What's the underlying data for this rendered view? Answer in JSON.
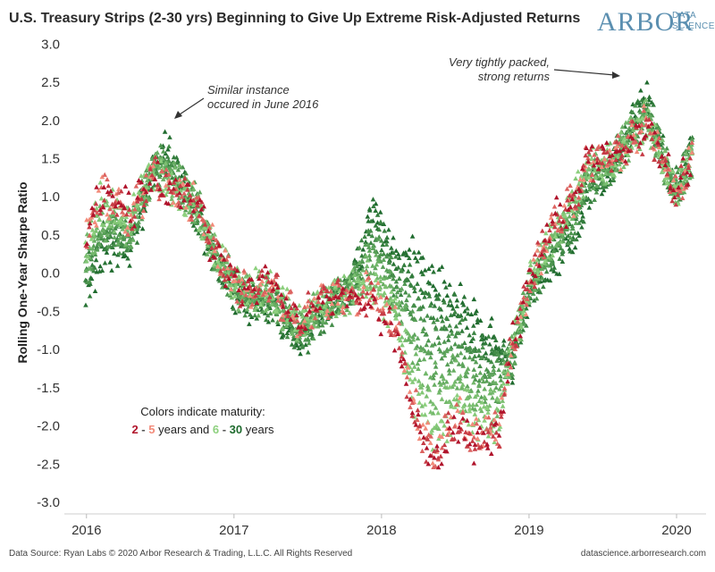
{
  "title": "U.S. Treasury Strips (2-30 yrs) Beginning to Give Up Extreme Risk-Adjusted Returns",
  "logo": {
    "main": "ARBOR",
    "sub_line1": "DATA",
    "sub_line2": "SCIENCE"
  },
  "footer": {
    "left": "Data Source: Ryan Labs © 2020 Arbor Research & Trading, L.L.C. All Rights Reserved",
    "right": "datascience.arborresearch.com"
  },
  "legend": {
    "line1": "Colors indicate maturity:",
    "n2": "2",
    "dash1": "-",
    "n5": "5",
    "mid": "years and",
    "n6": "6",
    "dash2": "-",
    "n30": "30",
    "end": "years"
  },
  "annotations": [
    {
      "line1": "Similar instance",
      "line2": "occured in June 2016"
    },
    {
      "line1": "Very tightly packed,",
      "line2": "strong returns"
    }
  ],
  "colors": {
    "short_dark": "#b0132b",
    "short_light": "#f28b7a",
    "long_light": "#8dd07e",
    "long_dark": "#1f6b2e"
  },
  "chart_data": {
    "type": "scatter",
    "xlabel": "",
    "ylabel": "Rolling One-Year Sharpe Ratio",
    "x_ticks": [
      "2016",
      "2017",
      "2018",
      "2019",
      "2020"
    ],
    "xlim": [
      2015.85,
      2020.2
    ],
    "ylim": [
      -3.15,
      3.05
    ],
    "y_ticks": [
      3.0,
      2.5,
      2.0,
      1.5,
      1.0,
      0.5,
      0.0,
      -0.5,
      -1.0,
      -1.5,
      -2.0,
      -2.5,
      -3.0
    ],
    "y_tick_labels": [
      "3.0",
      "2.5",
      "2.0",
      "1.5",
      "1.0",
      "0.5",
      "0.0",
      "-0.5",
      "-1.0",
      "-1.5",
      "-2.0",
      "-2.5",
      "-3.0"
    ],
    "marker": "triangle",
    "series_note": "Each date shows points for maturities 2-30 years; short maturities red, long maturities green",
    "anchors": [
      {
        "x": 2016.0,
        "short": 0.5,
        "long": -0.2
      },
      {
        "x": 2016.1,
        "short": 1.1,
        "long": 0.2
      },
      {
        "x": 2016.3,
        "short": 0.8,
        "long": 0.3
      },
      {
        "x": 2016.45,
        "short": 1.3,
        "long": 1.4
      },
      {
        "x": 2016.55,
        "short": 1.1,
        "long": 1.6
      },
      {
        "x": 2016.75,
        "short": 0.9,
        "long": 0.8
      },
      {
        "x": 2016.85,
        "short": 0.4,
        "long": 0.3
      },
      {
        "x": 2017.05,
        "short": -0.2,
        "long": -0.4
      },
      {
        "x": 2017.25,
        "short": -0.2,
        "long": -0.4
      },
      {
        "x": 2017.45,
        "short": -0.6,
        "long": -0.9
      },
      {
        "x": 2017.6,
        "short": -0.3,
        "long": -0.6
      },
      {
        "x": 2017.8,
        "short": -0.3,
        "long": -0.1
      },
      {
        "x": 2017.95,
        "short": -0.4,
        "long": 0.9
      },
      {
        "x": 2018.1,
        "short": -0.8,
        "long": 0.2
      },
      {
        "x": 2018.2,
        "short": -1.8,
        "long": 0.3
      },
      {
        "x": 2018.35,
        "short": -2.6,
        "long": 0.0
      },
      {
        "x": 2018.5,
        "short": -2.0,
        "long": -0.3
      },
      {
        "x": 2018.65,
        "short": -2.3,
        "long": -0.6
      },
      {
        "x": 2018.8,
        "short": -2.1,
        "long": -0.9
      },
      {
        "x": 2018.88,
        "short": -1.0,
        "long": -1.2
      },
      {
        "x": 2019.0,
        "short": -0.1,
        "long": -0.3
      },
      {
        "x": 2019.15,
        "short": 0.6,
        "long": 0.1
      },
      {
        "x": 2019.3,
        "short": 1.0,
        "long": 0.5
      },
      {
        "x": 2019.4,
        "short": 1.5,
        "long": 1.0
      },
      {
        "x": 2019.55,
        "short": 1.5,
        "long": 1.3
      },
      {
        "x": 2019.7,
        "short": 1.7,
        "long": 2.0
      },
      {
        "x": 2019.8,
        "short": 1.9,
        "long": 2.3
      },
      {
        "x": 2019.9,
        "short": 1.5,
        "long": 1.6
      },
      {
        "x": 2020.0,
        "short": 1.0,
        "long": 1.1
      },
      {
        "x": 2020.1,
        "short": 1.5,
        "long": 1.6
      }
    ]
  }
}
